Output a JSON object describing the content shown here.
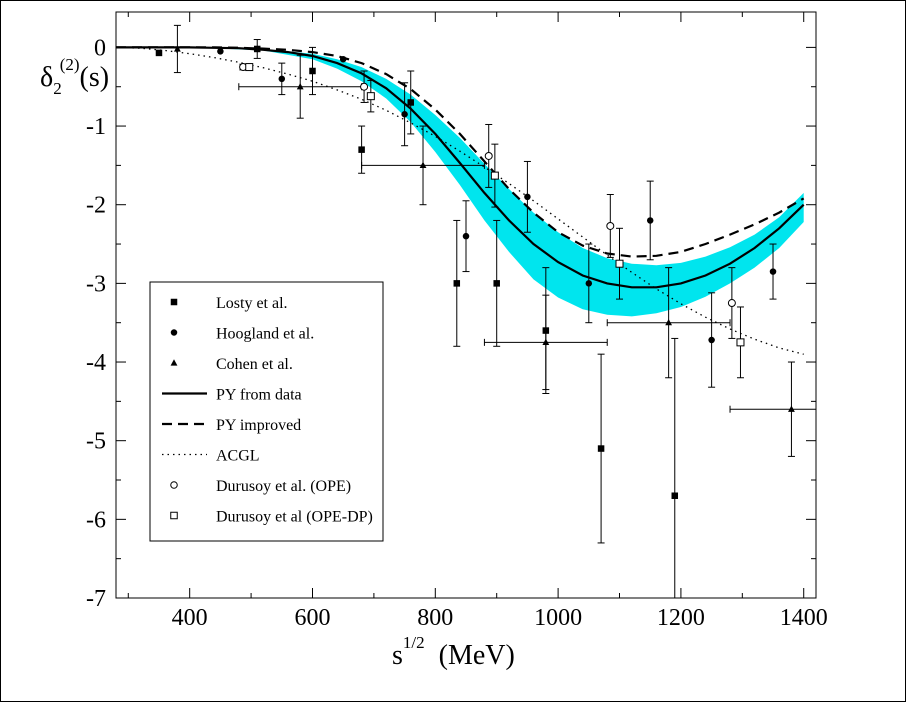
{
  "chart_data": {
    "type": "scatter",
    "ylabel": {
      "base": "δ",
      "sub": "2",
      "sup": "(2)",
      "suffix": "(s)"
    },
    "xlabel": {
      "base": "s",
      "sup": "1/2",
      "suffix": "(MeV)"
    },
    "xlim": [
      280,
      1420
    ],
    "ylim": [
      -7,
      0.45
    ],
    "x_ticks": [
      400,
      600,
      800,
      1000,
      1200,
      1400
    ],
    "y_ticks": [
      0,
      -1,
      -2,
      -3,
      -4,
      -5,
      -6,
      -7
    ],
    "y_tick_labels": [
      "0",
      "-1",
      "-2",
      "-3",
      "-4",
      "-5",
      "-6",
      "-7"
    ],
    "legend_position": "left-middle",
    "colors": {
      "band": "#00e5ee",
      "line": "#000000"
    },
    "series": [
      {
        "name": "Losty et al.",
        "kind": "points",
        "marker": "square-filled",
        "points": [
          {
            "x": 350,
            "y": -0.07
          },
          {
            "x": 510,
            "y": -0.02,
            "yerr": 0.12
          },
          {
            "x": 600,
            "y": -0.3,
            "yerr": 0.3
          },
          {
            "x": 680,
            "y": -1.3,
            "yerr": 0.3
          },
          {
            "x": 760,
            "y": -0.7,
            "yerr": 0.4
          },
          {
            "x": 835,
            "y": -3.0,
            "yerr": 0.8
          },
          {
            "x": 900,
            "y": -3.0,
            "yerr": 0.8
          },
          {
            "x": 980,
            "y": -3.6,
            "yerr": 0.8
          },
          {
            "x": 1070,
            "y": -5.1,
            "yerr": 1.2
          },
          {
            "x": 1190,
            "y": -5.7,
            "yerr": 2.0
          }
        ]
      },
      {
        "name": "Hoogland et al.",
        "kind": "points",
        "marker": "circle-filled",
        "points": [
          {
            "x": 450,
            "y": -0.05
          },
          {
            "x": 550,
            "y": -0.4,
            "yerr": 0.2
          },
          {
            "x": 650,
            "y": -0.15
          },
          {
            "x": 750,
            "y": -0.85,
            "yerr": 0.4
          },
          {
            "x": 850,
            "y": -2.4,
            "yerr": 0.45
          },
          {
            "x": 950,
            "y": -1.9,
            "yerr": 0.45
          },
          {
            "x": 1050,
            "y": -3.0,
            "yerr": 0.5
          },
          {
            "x": 1150,
            "y": -2.2,
            "yerr": 0.5
          },
          {
            "x": 1250,
            "y": -3.72,
            "yerr": 0.6
          },
          {
            "x": 1350,
            "y": -2.85,
            "yerr": 0.35
          }
        ]
      },
      {
        "name": "Cohen et al.",
        "kind": "points",
        "marker": "triangle-filled",
        "points": [
          {
            "x": 380,
            "y": -0.02,
            "yerr": 0.3
          },
          {
            "x": 580,
            "y": -0.5,
            "yerr": 0.4,
            "xerr": 100
          },
          {
            "x": 780,
            "y": -1.5,
            "yerr": 0.5,
            "xerr": 100
          },
          {
            "x": 980,
            "y": -3.75,
            "yerr": 0.6,
            "xerr": 100
          },
          {
            "x": 1180,
            "y": -3.5,
            "yerr": 0.7,
            "xerr": 100
          },
          {
            "x": 1380,
            "y": -4.6,
            "yerr": 0.6,
            "xerr": 100
          }
        ]
      },
      {
        "name": "PY from data",
        "kind": "line",
        "dash": "solid",
        "x": [
          280,
          320,
          360,
          400,
          440,
          480,
          520,
          560,
          600,
          640,
          680,
          720,
          760,
          800,
          840,
          880,
          920,
          960,
          1000,
          1040,
          1080,
          1120,
          1160,
          1200,
          1240,
          1280,
          1320,
          1360,
          1400
        ],
        "y": [
          0,
          0,
          0,
          0,
          -0.005,
          -0.01,
          -0.03,
          -0.06,
          -0.11,
          -0.2,
          -0.33,
          -0.52,
          -0.78,
          -1.1,
          -1.47,
          -1.85,
          -2.2,
          -2.5,
          -2.73,
          -2.9,
          -3.0,
          -3.05,
          -3.05,
          -3.0,
          -2.9,
          -2.75,
          -2.55,
          -2.3,
          -2.0
        ]
      },
      {
        "name": "PY improved",
        "kind": "line",
        "dash": "dashed",
        "x": [
          280,
          320,
          360,
          400,
          440,
          480,
          520,
          560,
          600,
          640,
          680,
          720,
          760,
          800,
          840,
          880,
          920,
          960,
          1000,
          1040,
          1080,
          1120,
          1160,
          1200,
          1240,
          1280,
          1320,
          1360,
          1400
        ],
        "y": [
          0,
          0,
          0,
          0,
          0,
          -0.005,
          -0.015,
          -0.03,
          -0.06,
          -0.11,
          -0.2,
          -0.34,
          -0.53,
          -0.79,
          -1.1,
          -1.45,
          -1.8,
          -2.1,
          -2.35,
          -2.52,
          -2.62,
          -2.66,
          -2.65,
          -2.6,
          -2.5,
          -2.38,
          -2.25,
          -2.1,
          -1.92
        ]
      },
      {
        "name": "ACGL",
        "kind": "line",
        "dash": "dotted",
        "x": [
          280,
          320,
          360,
          400,
          440,
          480,
          520,
          560,
          600,
          640,
          680,
          720,
          760,
          800,
          840,
          880,
          920,
          960,
          1000,
          1040,
          1080,
          1120,
          1160,
          1200,
          1240,
          1280,
          1320,
          1360,
          1400
        ],
        "y": [
          0,
          -0.01,
          -0.04,
          -0.08,
          -0.13,
          -0.19,
          -0.26,
          -0.34,
          -0.43,
          -0.54,
          -0.66,
          -0.8,
          -0.96,
          -1.13,
          -1.32,
          -1.52,
          -1.73,
          -1.95,
          -2.18,
          -2.41,
          -2.64,
          -2.86,
          -3.07,
          -3.26,
          -3.43,
          -3.58,
          -3.71,
          -3.82,
          -3.9
        ]
      },
      {
        "name": "Durusoy et al. (OPE)",
        "kind": "points",
        "marker": "circle-open",
        "points": [
          {
            "x": 487,
            "y": -0.25,
            "xerr": 5
          },
          {
            "x": 684,
            "y": -0.5,
            "yerr": 0.2
          },
          {
            "x": 887,
            "y": -1.38,
            "yerr": 0.4
          },
          {
            "x": 1085,
            "y": -2.27,
            "yerr": 0.4
          },
          {
            "x": 1283,
            "y": -3.25,
            "yerr": 0.45
          }
        ]
      },
      {
        "name": "Durusoy et al (OPE-DP)",
        "kind": "points",
        "marker": "square-open",
        "points": [
          {
            "x": 497,
            "y": -0.25,
            "xerr": 5
          },
          {
            "x": 695,
            "y": -0.62,
            "yerr": 0.2
          },
          {
            "x": 897,
            "y": -1.63,
            "yerr": 0.4
          },
          {
            "x": 1100,
            "y": -2.75,
            "yerr": 0.45
          },
          {
            "x": 1297,
            "y": -3.75,
            "yerr": 0.45
          }
        ]
      }
    ],
    "band": {
      "x": [
        280,
        360,
        440,
        520,
        600,
        640,
        680,
        720,
        760,
        800,
        840,
        880,
        920,
        960,
        1000,
        1040,
        1080,
        1120,
        1160,
        1200,
        1240,
        1280,
        1320,
        1360,
        1400
      ],
      "upper": [
        0,
        0,
        0,
        -0.02,
        -0.08,
        -0.15,
        -0.25,
        -0.4,
        -0.6,
        -0.86,
        -1.15,
        -1.48,
        -1.8,
        -2.1,
        -2.35,
        -2.55,
        -2.68,
        -2.75,
        -2.77,
        -2.74,
        -2.66,
        -2.54,
        -2.38,
        -2.16,
        -1.85
      ],
      "lower": [
        0,
        0,
        -0.01,
        -0.04,
        -0.15,
        -0.27,
        -0.43,
        -0.65,
        -0.95,
        -1.33,
        -1.75,
        -2.2,
        -2.6,
        -2.95,
        -3.18,
        -3.33,
        -3.4,
        -3.42,
        -3.38,
        -3.3,
        -3.17,
        -3.0,
        -2.8,
        -2.55,
        -2.22
      ]
    }
  }
}
